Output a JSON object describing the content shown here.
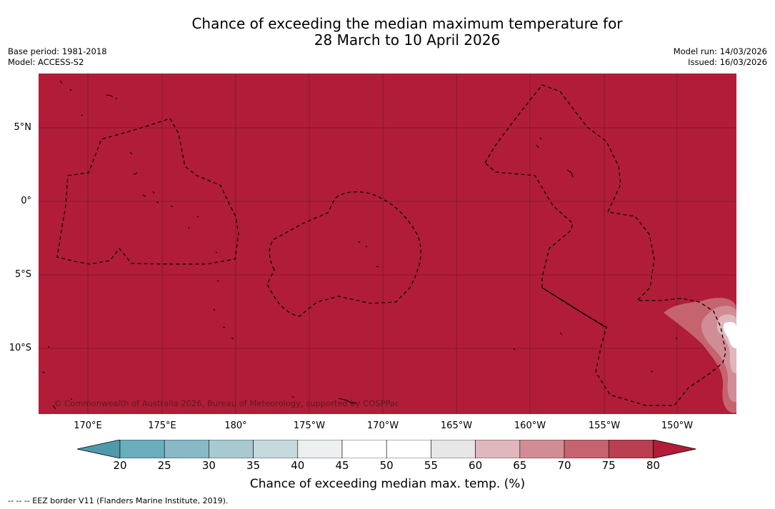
{
  "title": {
    "line1": "Chance of exceeding the median maximum temperature for",
    "line2": "28 March to 10 April 2026"
  },
  "meta_left": {
    "base_period": "Base period: 1981-2018",
    "model": "Model: ACCESS-S2"
  },
  "meta_right": {
    "model_run": "Model run: 14/03/2026",
    "issued": "Issued: 16/03/2026"
  },
  "map": {
    "background_color": "#b11d38",
    "lat_labels": [
      "5°N",
      "0°",
      "5°S",
      "10°S"
    ],
    "lon_labels": [
      "170°E",
      "175°E",
      "180°",
      "175°W",
      "170°W",
      "165°W",
      "160°W",
      "155°W",
      "150°W"
    ],
    "copyright": "© Commonwealth of Australia 2026, Bureau of Meteorology, supported by COSPPac"
  },
  "colorbar": {
    "ticks": [
      "20",
      "25",
      "30",
      "35",
      "40",
      "45",
      "50",
      "55",
      "60",
      "65",
      "70",
      "75",
      "80"
    ],
    "colors": [
      "#4f9aaa",
      "#6aaebd",
      "#88b9c4",
      "#a8c9cf",
      "#c6d9dc",
      "#ecf0f1",
      "#ffffff",
      "#ffffff",
      "#e9e6e7",
      "#dfb7bd",
      "#d18d95",
      "#c5646f",
      "#b84050",
      "#b11d38"
    ],
    "label": "Chance of exceeding median max. temp. (%)"
  },
  "footnote": "--  --  -- EEZ border V11 (Flanders Marine Institute, 2019)."
}
